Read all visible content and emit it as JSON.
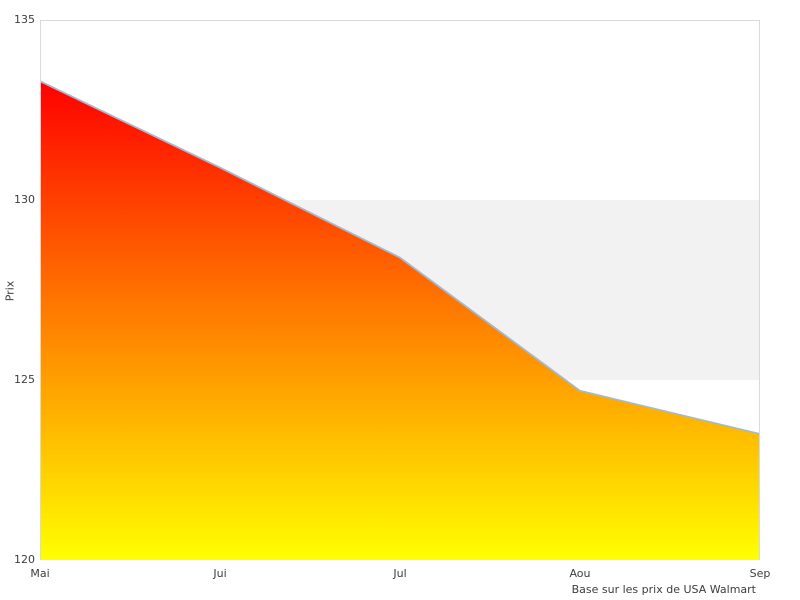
{
  "caption": "Base sur les prix de USA Walmart",
  "chart_data": {
    "type": "area",
    "title": "",
    "xlabel": "",
    "ylabel": "Prix",
    "categories": [
      "Mai",
      "Jui",
      "Jul",
      "Aou",
      "Sep"
    ],
    "values": [
      133.3,
      130.9,
      128.4,
      124.7,
      123.5
    ],
    "ylim": [
      120,
      135
    ],
    "yticks": [
      120,
      125,
      130,
      135
    ],
    "grid": false,
    "legend": "none",
    "band": {
      "from": 125,
      "to": 130,
      "color": "#f2f2f2"
    },
    "area_gradient": {
      "top": "#ff0000",
      "bottom": "#ffff00"
    },
    "line_color": "#9dbbd9",
    "border_color": "#d9d9d9",
    "text_color": "#3d3d3d"
  }
}
